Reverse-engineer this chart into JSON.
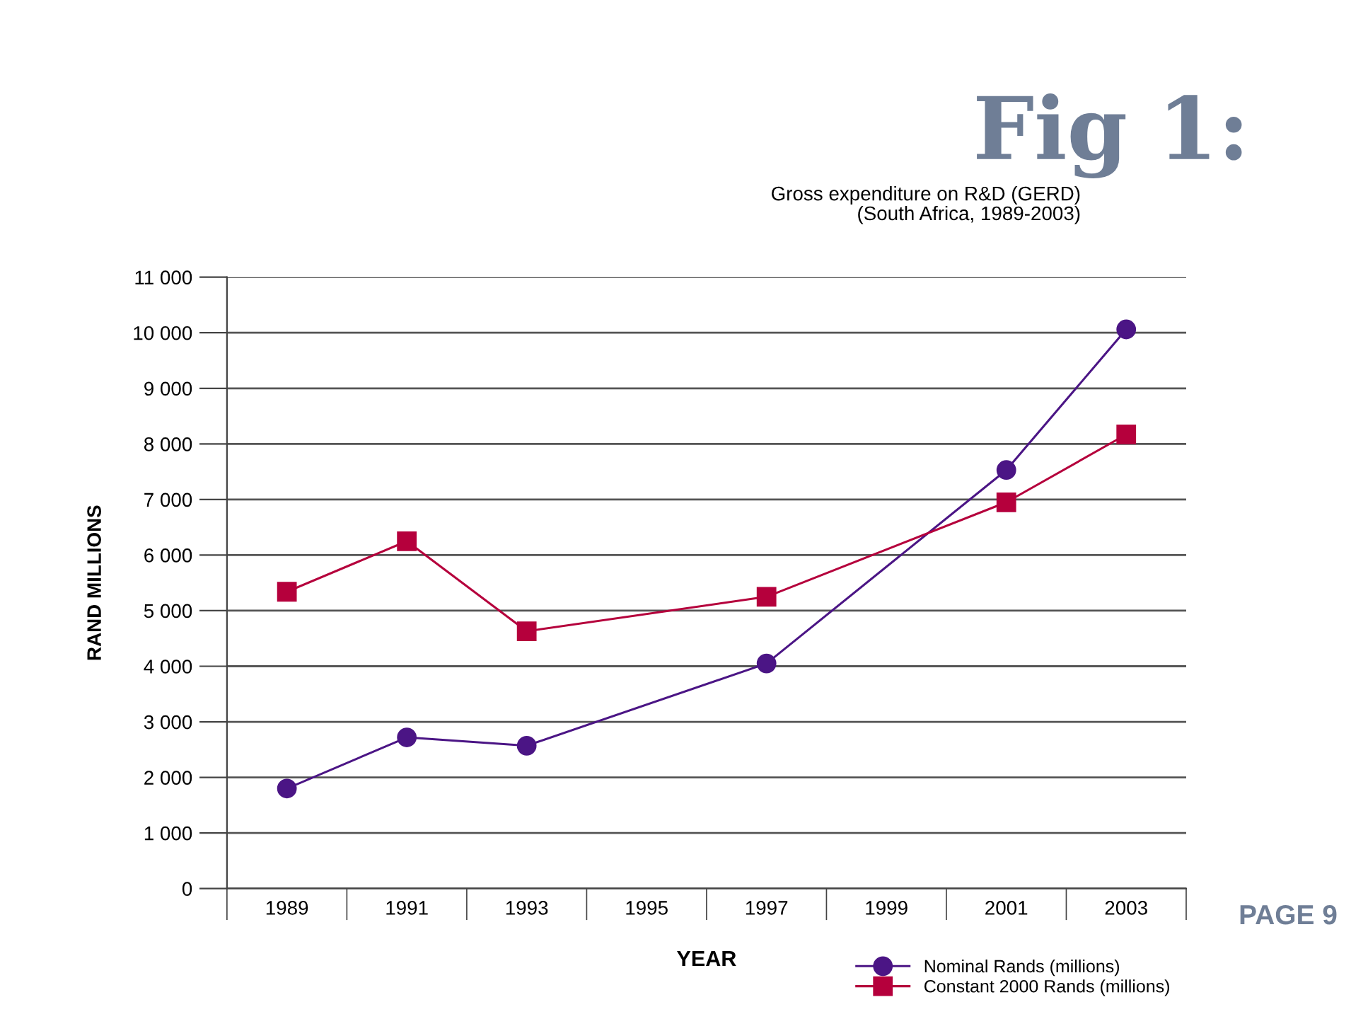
{
  "chart_data": {
    "type": "line",
    "title": "Fig 1:",
    "subtitle": "Gross expenditure on R&D (GERD)\n(South Africa, 1989-2003)",
    "xlabel": "YEAR",
    "ylabel": "RAND MILLIONS",
    "categories": [
      "1989",
      "1991",
      "1993",
      "1995",
      "1997",
      "1999",
      "2001",
      "2003"
    ],
    "series": [
      {
        "name": "Nominal Rands (millions)",
        "color": "#4b1585",
        "marker": "circle",
        "values": [
          1800,
          2720,
          2570,
          null,
          4050,
          null,
          7530,
          10060
        ]
      },
      {
        "name": "Constant 2000 Rands (millions)",
        "color": "#b5003c",
        "marker": "square",
        "values": [
          5340,
          6250,
          4630,
          null,
          5250,
          null,
          6950,
          8170
        ]
      }
    ],
    "ylim": [
      0,
      11000
    ],
    "yticks": [
      {
        "value": 0,
        "label": "0"
      },
      {
        "value": 1000,
        "label": "1 000"
      },
      {
        "value": 2000,
        "label": "2 000"
      },
      {
        "value": 3000,
        "label": "3 000"
      },
      {
        "value": 4000,
        "label": "4 000"
      },
      {
        "value": 5000,
        "label": "5 000"
      },
      {
        "value": 6000,
        "label": "6 000"
      },
      {
        "value": 7000,
        "label": "7 000"
      },
      {
        "value": 8000,
        "label": "8 000"
      },
      {
        "value": 9000,
        "label": "9 000"
      },
      {
        "value": 10000,
        "label": "10 000"
      },
      {
        "value": 11000,
        "label": "11 000"
      }
    ],
    "grid": "y",
    "legend": "bottom right",
    "line_style": "solid",
    "annotations": [
      "PAGE 9"
    ]
  }
}
